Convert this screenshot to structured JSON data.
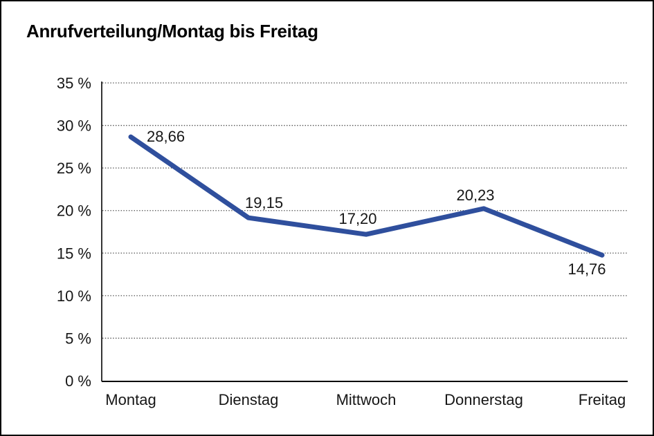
{
  "chart_data": {
    "type": "line",
    "title": "Anrufverteilung/Montag bis Freitag",
    "categories": [
      "Montag",
      "Dienstag",
      "Mittwoch",
      "Donnerstag",
      "Freitag"
    ],
    "series": [
      {
        "name": "Anrufverteilung",
        "values": [
          28.66,
          19.15,
          17.2,
          20.23,
          14.76
        ]
      }
    ],
    "point_labels": [
      "28,66",
      "19,15",
      "17,20",
      "20,23",
      "14,76"
    ],
    "xlabel": "",
    "ylabel": "",
    "ylim": [
      0,
      35
    ],
    "y_ticks": [
      {
        "value": 0,
        "label": "0 %"
      },
      {
        "value": 5,
        "label": "5 %"
      },
      {
        "value": 10,
        "label": "10 %"
      },
      {
        "value": 15,
        "label": "15 %"
      },
      {
        "value": 20,
        "label": "20 %"
      },
      {
        "value": 25,
        "label": "25 %"
      },
      {
        "value": 30,
        "label": "30 %"
      },
      {
        "value": 35,
        "label": "35 %"
      }
    ],
    "grid": "horizontal-dotted",
    "legend_position": "none",
    "colors": {
      "line": "#2f4f9d",
      "axis": "#000000",
      "gridline": "#4a4a4a",
      "label": "#161616",
      "background": "#ffffff"
    }
  }
}
